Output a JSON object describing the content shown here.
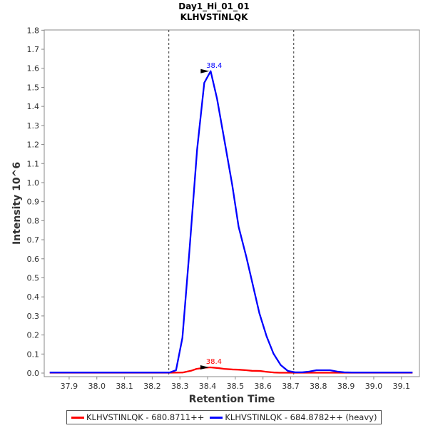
{
  "chart_data": {
    "type": "line",
    "title": "Day1_Hi_01_01",
    "subtitle": "KLHVSTINLQK",
    "xlabel": "Retention Time",
    "ylabel": "Intensity 10^6",
    "xlim": [
      37.81,
      39.165
    ],
    "ylim": [
      0,
      1.82
    ],
    "xticks": [
      "37.9",
      "38.0",
      "38.1",
      "38.2",
      "38.3",
      "38.4",
      "38.5",
      "38.6",
      "38.7",
      "38.8",
      "38.9",
      "39.0",
      "39.1"
    ],
    "yticks": [
      "0.0",
      "0.1",
      "0.2",
      "0.3",
      "0.4",
      "0.5",
      "0.6",
      "0.7",
      "0.8",
      "0.9",
      "1.0",
      "1.1",
      "1.2",
      "1.3",
      "1.4",
      "1.5",
      "1.6",
      "1.7",
      "1.8"
    ],
    "boundaries": [
      38.26,
      38.711
    ],
    "series": [
      {
        "name": "KLHVSTINLQK - 680.8711++",
        "color": "#ff0000",
        "peak_label": "38.4",
        "peak_rt": 38.41,
        "peak_y": 0.03,
        "x": [
          37.83,
          38.26,
          38.31,
          38.34,
          38.36,
          38.39,
          38.41,
          38.44,
          38.46,
          38.49,
          38.51,
          38.54,
          38.56,
          38.59,
          38.61,
          38.64,
          38.66,
          38.7,
          39.14
        ],
        "y": [
          0.002,
          0.002,
          0.003,
          0.012,
          0.022,
          0.028,
          0.03,
          0.026,
          0.022,
          0.019,
          0.018,
          0.015,
          0.012,
          0.011,
          0.007,
          0.003,
          0.002,
          0.002,
          0.002
        ]
      },
      {
        "name": "KLHVSTINLQK - 684.8782++ (heavy)",
        "color": "#0000ff",
        "peak_label": "38.4",
        "peak_rt": 38.411,
        "peak_y": 1.585,
        "x": [
          37.83,
          38.263,
          38.286,
          38.309,
          38.334,
          38.362,
          38.388,
          38.411,
          38.434,
          38.463,
          38.489,
          38.512,
          38.54,
          38.563,
          38.587,
          38.613,
          38.638,
          38.664,
          38.69,
          38.716,
          38.742,
          38.767,
          38.793,
          38.816,
          38.842,
          38.868,
          38.893,
          38.92,
          39.14
        ],
        "y": [
          0.003,
          0.003,
          0.015,
          0.185,
          0.635,
          1.172,
          1.524,
          1.585,
          1.441,
          1.203,
          0.987,
          0.768,
          0.609,
          0.465,
          0.314,
          0.193,
          0.102,
          0.042,
          0.011,
          0.004,
          0.004,
          0.008,
          0.015,
          0.015,
          0.015,
          0.008,
          0.004,
          0.003,
          0.003
        ]
      }
    ],
    "legend": "bottom"
  }
}
